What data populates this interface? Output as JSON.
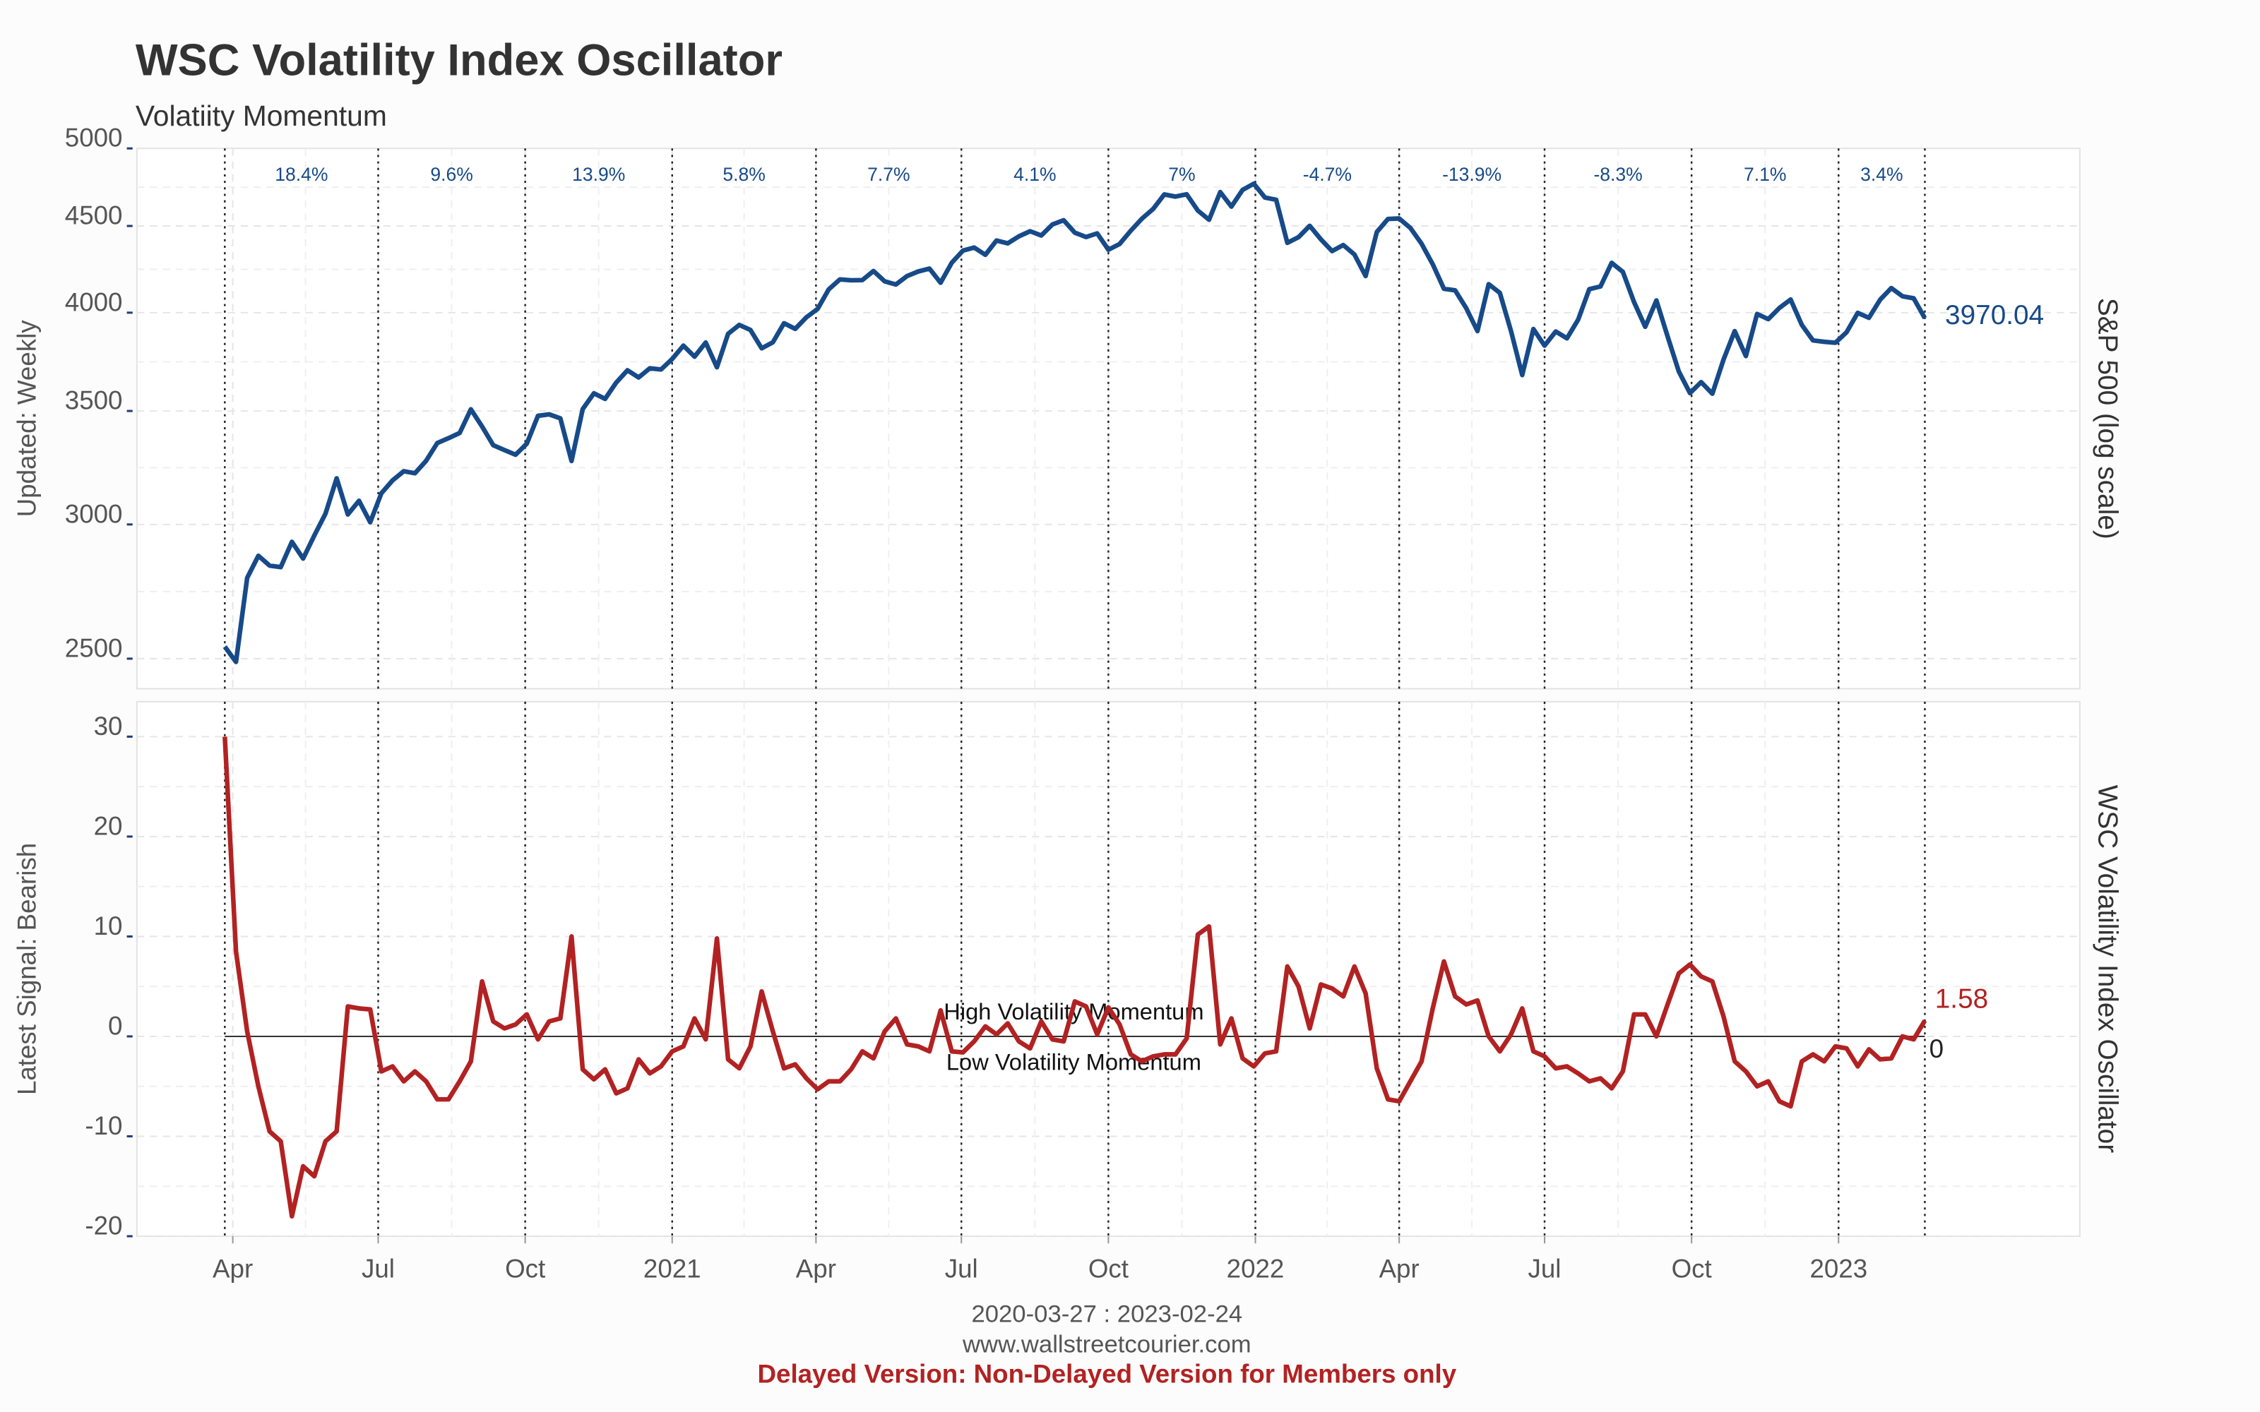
{
  "title": "WSC Volatility Index Oscillator",
  "subtitle": "Volatiity Momentum",
  "date_range": "2020-03-27 : 2023-02-24",
  "website": "www.wallstreetcourier.com",
  "notice": "Delayed Version: Non-Delayed Version for Members only",
  "chart_data": [
    {
      "type": "line",
      "y_label_left": "Updated: Weekly",
      "y_label_right": "S&P 500 (log scale)",
      "log_scale": true,
      "grid": true,
      "ylim": [
        2400,
        5000
      ],
      "yticks": [
        2500,
        3000,
        3500,
        4000,
        4500,
        5000
      ],
      "period_returns": [
        "18.4%",
        "9.6%",
        "13.9%",
        "5.8%",
        "7.7%",
        "4.1%",
        "7%",
        "-4.7%",
        "-13.9%",
        "-8.3%",
        "7.1%",
        "3.4%"
      ],
      "series": [
        {
          "color": "#174a88",
          "values": [
            2541,
            2489,
            2790,
            2875,
            2837,
            2831,
            2930,
            2864,
            2955,
            3044,
            3194,
            3041,
            3098,
            3009,
            3130,
            3185,
            3225,
            3216,
            3271,
            3351,
            3373,
            3397,
            3508,
            3427,
            3341,
            3319,
            3298,
            3348,
            3477,
            3484,
            3465,
            3270,
            3509,
            3585,
            3558,
            3638,
            3699,
            3663,
            3709,
            3703,
            3756,
            3825,
            3768,
            3841,
            3714,
            3887,
            3934,
            3907,
            3811,
            3842,
            3943,
            3913,
            3975,
            4020,
            4129,
            4185,
            4180,
            4181,
            4233,
            4174,
            4156,
            4204,
            4230,
            4247,
            4166,
            4281,
            4352,
            4370,
            4327,
            4412,
            4395,
            4437,
            4468,
            4442,
            4509,
            4535,
            4459,
            4433,
            4455,
            4357,
            4391,
            4471,
            4545,
            4605,
            4697,
            4683,
            4698,
            4595,
            4538,
            4712,
            4620,
            4726,
            4766,
            4677,
            4663,
            4398,
            4432,
            4501,
            4419,
            4349,
            4385,
            4329,
            4204,
            4463,
            4543,
            4546,
            4488,
            4393,
            4272,
            4132,
            4123,
            4024,
            3901,
            4158,
            4109,
            3901,
            3675,
            3912,
            3825,
            3899,
            3863,
            3962,
            4130,
            4145,
            4280,
            4228,
            4058,
            3924,
            4067,
            3873,
            3693,
            3586,
            3640,
            3583,
            3753,
            3901,
            3771,
            3993,
            3965,
            4026,
            4072,
            3934,
            3852,
            3845,
            3840,
            3895,
            3999,
            3972,
            4071,
            4136,
            4090,
            4079,
            3970.04
          ]
        }
      ]
    },
    {
      "type": "line",
      "y_label_left": "Latest Signal: Bearish",
      "y_label_right": "WSC Volatility Index Oscillator",
      "grid": true,
      "ylim": [
        -20,
        33.5
      ],
      "yticks": [
        -20,
        -10,
        0,
        10,
        20,
        30
      ],
      "reference_line": 0,
      "annotations": [
        "High Volatility Momentum",
        "Low Volatility Momentum"
      ],
      "xlim": [
        "2020-02",
        "2023-06"
      ],
      "xticks": [
        {
          "value": "2020-04",
          "label": "Apr"
        },
        {
          "value": "2020-07",
          "label": "Jul"
        },
        {
          "value": "2020-10",
          "label": "Oct"
        },
        {
          "value": "2021-01",
          "label": "2021"
        },
        {
          "value": "2021-04",
          "label": "Apr"
        },
        {
          "value": "2021-07",
          "label": "Jul"
        },
        {
          "value": "2021-10",
          "label": "Oct"
        },
        {
          "value": "2022-01",
          "label": "2022"
        },
        {
          "value": "2022-04",
          "label": "Apr"
        },
        {
          "value": "2022-07",
          "label": "Jul"
        },
        {
          "value": "2022-10",
          "label": "Oct"
        },
        {
          "value": "2023-01",
          "label": "2023"
        }
      ],
      "series": [
        {
          "color": "#b22222",
          "values": [
            30,
            8.5,
            0.5,
            -5,
            -9.5,
            -10.5,
            -18,
            -13,
            -14,
            -10.5,
            -9.5,
            3,
            2.8,
            2.7,
            -3.5,
            -3,
            -4.5,
            -3.5,
            -4.5,
            -6.3,
            -6.3,
            -4.5,
            -2.5,
            5.5,
            1.5,
            0.8,
            1.2,
            2.2,
            -0.3,
            1.5,
            1.8,
            10,
            -3.3,
            -4.3,
            -3.3,
            -5.7,
            -5.2,
            -2.3,
            -3.7,
            -3,
            -1.5,
            -1,
            1.8,
            -0.3,
            9.8,
            -2.3,
            -3.2,
            -1,
            4.5,
            0.5,
            -3.2,
            -2.8,
            -4.2,
            -5.3,
            -4.5,
            -4.5,
            -3.3,
            -1.5,
            -2.2,
            0.5,
            1.8,
            -0.8,
            -1,
            -1.5,
            2.6,
            -1.5,
            -1.6,
            -0.5,
            1,
            0.2,
            1.3,
            -0.5,
            -1.2,
            1.5,
            -0.3,
            -0.5,
            3.5,
            3,
            0.2,
            2.9,
            1.2,
            -1.8,
            -2.5,
            -2,
            -1.8,
            -1.8,
            -0.2,
            10.2,
            11,
            -0.8,
            1.8,
            -2.2,
            -3,
            -1.7,
            -1.5,
            7,
            5,
            0.8,
            5.2,
            4.8,
            4,
            7,
            4.3,
            -3.2,
            -6.3,
            -6.5,
            -4.5,
            -2.5,
            2.8,
            7.5,
            4,
            3.2,
            3.6,
            0,
            -1.5,
            0.2,
            2.8,
            -1.5,
            -2,
            -3.2,
            -3,
            -3.7,
            -4.5,
            -4.2,
            -5.2,
            -3.5,
            2.2,
            2.2,
            0,
            3.2,
            6.3,
            7.2,
            6,
            5.5,
            2,
            -2.5,
            -3.5,
            -5,
            -4.5,
            -6.5,
            -7,
            -2.5,
            -1.8,
            -2.5,
            -1,
            -1.2,
            -3,
            -1.3,
            -2.3,
            -2.2,
            0,
            -0.3,
            1.58
          ]
        }
      ]
    }
  ]
}
